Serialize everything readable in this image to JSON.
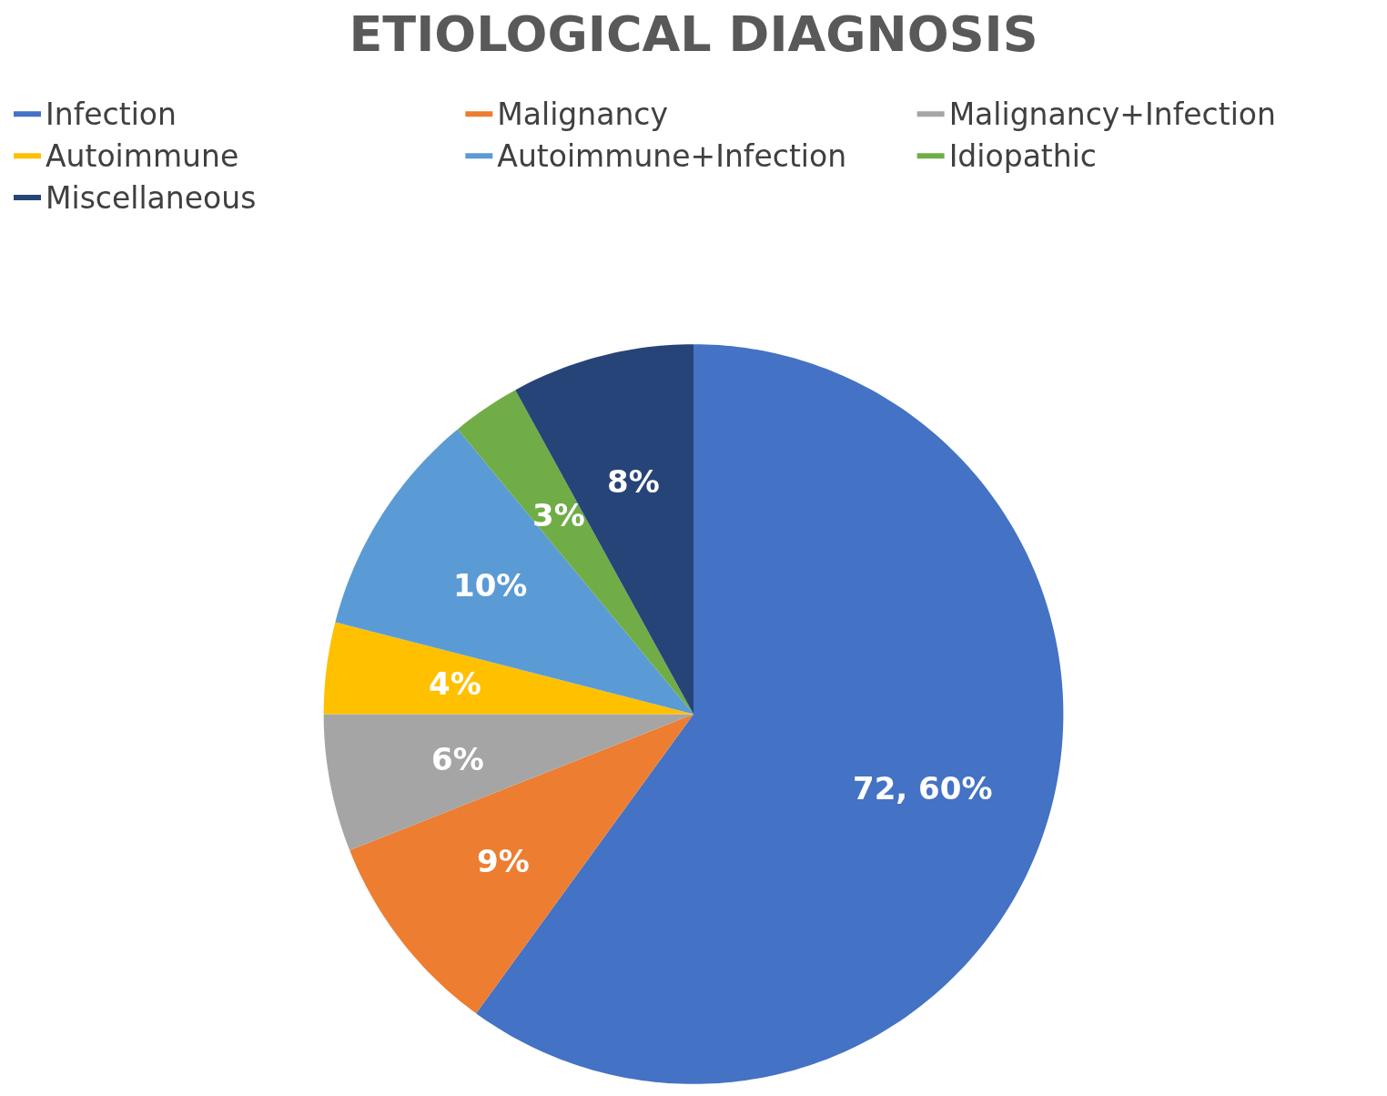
{
  "chart_data": {
    "type": "pie",
    "title": "ETIOLOGICAL DIAGNOSIS",
    "categories": [
      "Infection",
      "Malignancy",
      "Malignancy+Infection",
      "Autoimmune",
      "Autoimmune+Infection",
      "Idiopathic",
      "Miscellaneous"
    ],
    "values": [
      60,
      9,
      6,
      4,
      10,
      3,
      8
    ],
    "value_labels": [
      "72, 60%",
      "9%",
      "6%",
      "4%",
      "10%",
      "3%",
      "8%"
    ],
    "colors": [
      "#4472c4",
      "#ed7d31",
      "#a5a5a5",
      "#ffc000",
      "#5b9bd5",
      "#70ad47",
      "#264478"
    ],
    "legend": "top"
  }
}
